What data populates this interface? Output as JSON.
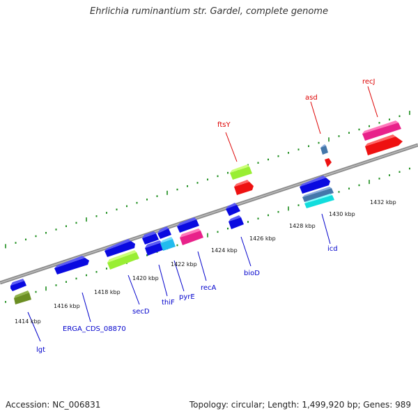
{
  "title": "Ehrlichia ruminantium str. Gardel, complete genome",
  "footer": {
    "accession": "Accession: NC_006831",
    "summary": "Topology: circular; Length: 1,499,920 bp; Genes: 989"
  },
  "colors": {
    "backbone": "#8c8c8c",
    "tick": "#1a8c1a",
    "label_blue": "#0000cc",
    "label_red": "#dd0000"
  },
  "kbp_labels": [
    "1414 kbp",
    "1416 kbp",
    "1418 kbp",
    "1420 kbp",
    "1422 kbp",
    "1424 kbp",
    "1426 kbp",
    "1428 kbp",
    "1430 kbp",
    "1432 kbp"
  ],
  "gene_labels": [
    {
      "name": "lgt",
      "color": "label_blue"
    },
    {
      "name": "ERGA_CDS_08870",
      "color": "label_blue"
    },
    {
      "name": "secD",
      "color": "label_blue"
    },
    {
      "name": "thiF",
      "color": "label_blue"
    },
    {
      "name": "pyrE",
      "color": "label_blue"
    },
    {
      "name": "recA",
      "color": "label_blue"
    },
    {
      "name": "bioD",
      "color": "label_blue"
    },
    {
      "name": "icd",
      "color": "label_blue"
    },
    {
      "name": "ftsY",
      "color": "label_red"
    },
    {
      "name": "asd",
      "color": "label_red"
    },
    {
      "name": "recJ",
      "color": "label_red"
    }
  ]
}
